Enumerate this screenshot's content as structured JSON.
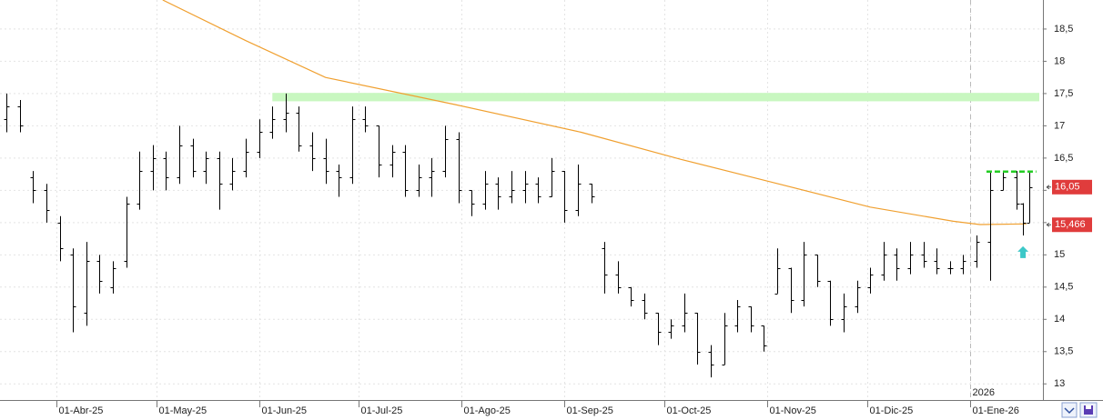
{
  "chart_data": {
    "type": "ohlc",
    "xlim": [
      "2025-03-15",
      "2026-01-23"
    ],
    "ylim": [
      12.75,
      18.95
    ],
    "grid": true,
    "yticks": [
      {
        "value": 13,
        "label": "13"
      },
      {
        "value": 13.5,
        "label": "13,5"
      },
      {
        "value": 14,
        "label": "14"
      },
      {
        "value": 14.5,
        "label": "14,5"
      },
      {
        "value": 15,
        "label": "15"
      },
      {
        "value": 15.5,
        "label": "15,5"
      },
      {
        "value": 16,
        "label": "16"
      },
      {
        "value": 16.5,
        "label": "16,5"
      },
      {
        "value": 17,
        "label": "17"
      },
      {
        "value": 17.5,
        "label": "17,5"
      },
      {
        "value": 18,
        "label": "18"
      },
      {
        "value": 18.5,
        "label": "18,5"
      }
    ],
    "xticks": [
      {
        "value": "2025-04-01",
        "label": "01-Abr-25"
      },
      {
        "value": "2025-05-01",
        "label": "01-May-25"
      },
      {
        "value": "2025-06-01",
        "label": "01-Jun-25"
      },
      {
        "value": "2025-07-01",
        "label": "01-Jul-25"
      },
      {
        "value": "2025-08-01",
        "label": "01-Ago-25"
      },
      {
        "value": "2025-09-01",
        "label": "01-Sep-25"
      },
      {
        "value": "2025-10-01",
        "label": "01-Oct-25"
      },
      {
        "value": "2025-11-01",
        "label": "01-Nov-25"
      },
      {
        "value": "2025-12-01",
        "label": "01-Dic-25"
      },
      {
        "value": "2026-01-01",
        "label": "01-Ene-26"
      }
    ],
    "year_marker": {
      "value": "2026-01-01",
      "label": "2026"
    },
    "ohlc": {
      "color": "#000000",
      "x": [
        "2025-03-17",
        "2025-03-21",
        "2025-03-25",
        "2025-03-29",
        "2025-04-02",
        "2025-04-06",
        "2025-04-10",
        "2025-04-14",
        "2025-04-18",
        "2025-04-22",
        "2025-04-26",
        "2025-04-30",
        "2025-05-04",
        "2025-05-08",
        "2025-05-12",
        "2025-05-16",
        "2025-05-20",
        "2025-05-24",
        "2025-05-28",
        "2025-06-01",
        "2025-06-05",
        "2025-06-09",
        "2025-06-13",
        "2025-06-17",
        "2025-06-21",
        "2025-06-25",
        "2025-06-29",
        "2025-07-03",
        "2025-07-07",
        "2025-07-11",
        "2025-07-15",
        "2025-07-19",
        "2025-07-23",
        "2025-07-27",
        "2025-07-31",
        "2025-08-04",
        "2025-08-08",
        "2025-08-12",
        "2025-08-16",
        "2025-08-20",
        "2025-08-24",
        "2025-08-28",
        "2025-09-01",
        "2025-09-05",
        "2025-09-09",
        "2025-09-13",
        "2025-09-17",
        "2025-09-21",
        "2025-09-25",
        "2025-09-29",
        "2025-10-03",
        "2025-10-07",
        "2025-10-11",
        "2025-10-15",
        "2025-10-19",
        "2025-10-23",
        "2025-10-27",
        "2025-10-31",
        "2025-11-04",
        "2025-11-08",
        "2025-11-12",
        "2025-11-16",
        "2025-11-20",
        "2025-11-24",
        "2025-11-28",
        "2025-12-02",
        "2025-12-06",
        "2025-12-10",
        "2025-12-14",
        "2025-12-18",
        "2025-12-22",
        "2025-12-26",
        "2025-12-30",
        "2026-01-03",
        "2026-01-07",
        "2026-01-11",
        "2026-01-15",
        "2026-01-17",
        "2026-01-19"
      ],
      "open": [
        17.1,
        17.3,
        16.2,
        16.0,
        15.5,
        15.0,
        14.1,
        14.9,
        14.5,
        14.9,
        15.8,
        16.3,
        16.5,
        16.2,
        16.7,
        16.3,
        16.5,
        16.1,
        16.3,
        16.6,
        16.9,
        17.1,
        17.2,
        16.7,
        16.5,
        16.3,
        16.2,
        17.1,
        17.0,
        16.4,
        16.6,
        16.0,
        16.2,
        16.3,
        16.8,
        16.0,
        15.8,
        16.1,
        15.9,
        16.0,
        16.1,
        15.9,
        16.3,
        15.7,
        16.1,
        15.1,
        14.7,
        14.5,
        14.3,
        14.1,
        13.8,
        13.9,
        14.1,
        13.5,
        13.3,
        13.9,
        14.2,
        13.9,
        14.4,
        14.8,
        14.3,
        15.0,
        14.6,
        14.0,
        14.2,
        14.5,
        14.7,
        15.0,
        14.8,
        15.0,
        14.9,
        14.8,
        14.8,
        14.9,
        15.2,
        16.0,
        16.2,
        15.8,
        15.5
      ],
      "high": [
        17.5,
        17.4,
        16.3,
        16.1,
        15.6,
        15.1,
        15.2,
        15.0,
        14.9,
        15.9,
        16.6,
        16.7,
        16.6,
        17.0,
        16.8,
        16.6,
        16.6,
        16.5,
        16.8,
        17.1,
        17.3,
        17.5,
        17.3,
        16.9,
        16.8,
        16.4,
        17.3,
        17.3,
        17.0,
        16.7,
        16.7,
        16.4,
        16.5,
        17.0,
        16.9,
        16.0,
        16.3,
        16.2,
        16.3,
        16.3,
        16.2,
        16.5,
        16.3,
        16.4,
        16.1,
        15.2,
        14.9,
        14.5,
        14.4,
        14.1,
        14.0,
        14.4,
        14.1,
        13.6,
        14.1,
        14.3,
        14.2,
        13.9,
        15.1,
        14.8,
        15.2,
        15.0,
        14.6,
        14.4,
        14.6,
        14.8,
        15.2,
        15.1,
        15.2,
        15.2,
        15.1,
        14.9,
        15.0,
        15.3,
        16.3,
        16.3,
        16.3,
        15.8,
        16.3
      ],
      "low": [
        16.9,
        16.9,
        15.8,
        15.5,
        14.9,
        13.8,
        13.9,
        14.4,
        14.4,
        14.8,
        15.7,
        16.0,
        16.0,
        16.1,
        16.2,
        16.1,
        15.7,
        16.0,
        16.2,
        16.5,
        16.8,
        16.9,
        16.6,
        16.3,
        16.1,
        15.9,
        16.1,
        16.9,
        16.2,
        16.2,
        15.9,
        15.9,
        15.9,
        16.2,
        15.8,
        15.6,
        15.7,
        15.7,
        15.8,
        15.8,
        15.8,
        15.9,
        15.5,
        15.6,
        15.8,
        14.4,
        14.4,
        14.2,
        14.0,
        13.6,
        13.7,
        13.8,
        13.3,
        13.1,
        13.3,
        13.8,
        13.8,
        13.5,
        14.4,
        14.1,
        14.2,
        14.5,
        13.9,
        13.8,
        14.1,
        14.4,
        14.6,
        14.6,
        14.7,
        14.8,
        14.7,
        14.7,
        14.7,
        14.8,
        14.6,
        16.0,
        15.7,
        15.3,
        15.5
      ],
      "close": [
        17.3,
        17.0,
        16.0,
        15.7,
        15.1,
        14.2,
        14.9,
        14.6,
        14.8,
        15.8,
        16.3,
        16.5,
        16.2,
        16.7,
        16.3,
        16.5,
        16.1,
        16.3,
        16.6,
        16.9,
        17.1,
        17.2,
        16.7,
        16.5,
        16.3,
        16.2,
        17.1,
        17.0,
        16.4,
        16.6,
        16.0,
        16.2,
        16.3,
        16.8,
        16.0,
        15.8,
        16.1,
        15.9,
        16.0,
        16.1,
        15.9,
        16.3,
        15.7,
        16.1,
        15.9,
        14.7,
        14.5,
        14.3,
        14.1,
        13.8,
        13.9,
        14.1,
        13.5,
        13.3,
        13.9,
        14.2,
        13.9,
        13.6,
        14.8,
        14.3,
        15.0,
        14.6,
        14.0,
        14.2,
        14.5,
        14.7,
        15.0,
        14.8,
        15.0,
        14.9,
        14.8,
        14.8,
        14.9,
        15.2,
        16.0,
        16.2,
        15.8,
        15.5,
        16.05
      ]
    },
    "moving_average": {
      "color": "#f0a030",
      "x": [
        "2025-05-03",
        "2025-05-28",
        "2025-06-21",
        "2025-07-30",
        "2025-09-06",
        "2025-10-06",
        "2025-11-02",
        "2025-12-02",
        "2025-12-27",
        "2026-01-04",
        "2026-01-18"
      ],
      "values": [
        18.95,
        18.32,
        17.75,
        17.33,
        16.9,
        16.48,
        16.13,
        15.74,
        15.52,
        15.47,
        15.48
      ]
    },
    "zone": {
      "from_x": "2025-06-05",
      "from": 17.38,
      "to": 17.51,
      "color": "#c8f7c0"
    },
    "level": {
      "from_x": "2026-01-06",
      "to_x": "2026-01-21",
      "value": 16.29,
      "color": "#22cc22"
    },
    "signal": {
      "x": "2026-01-17",
      "value": 15.02,
      "color": "#3cc8c8"
    },
    "price_label_color": "#e03c3c",
    "price_labels": [
      {
        "value": 16.05,
        "label": "16,05"
      },
      {
        "value": 15.466,
        "label": "15,466"
      }
    ]
  }
}
